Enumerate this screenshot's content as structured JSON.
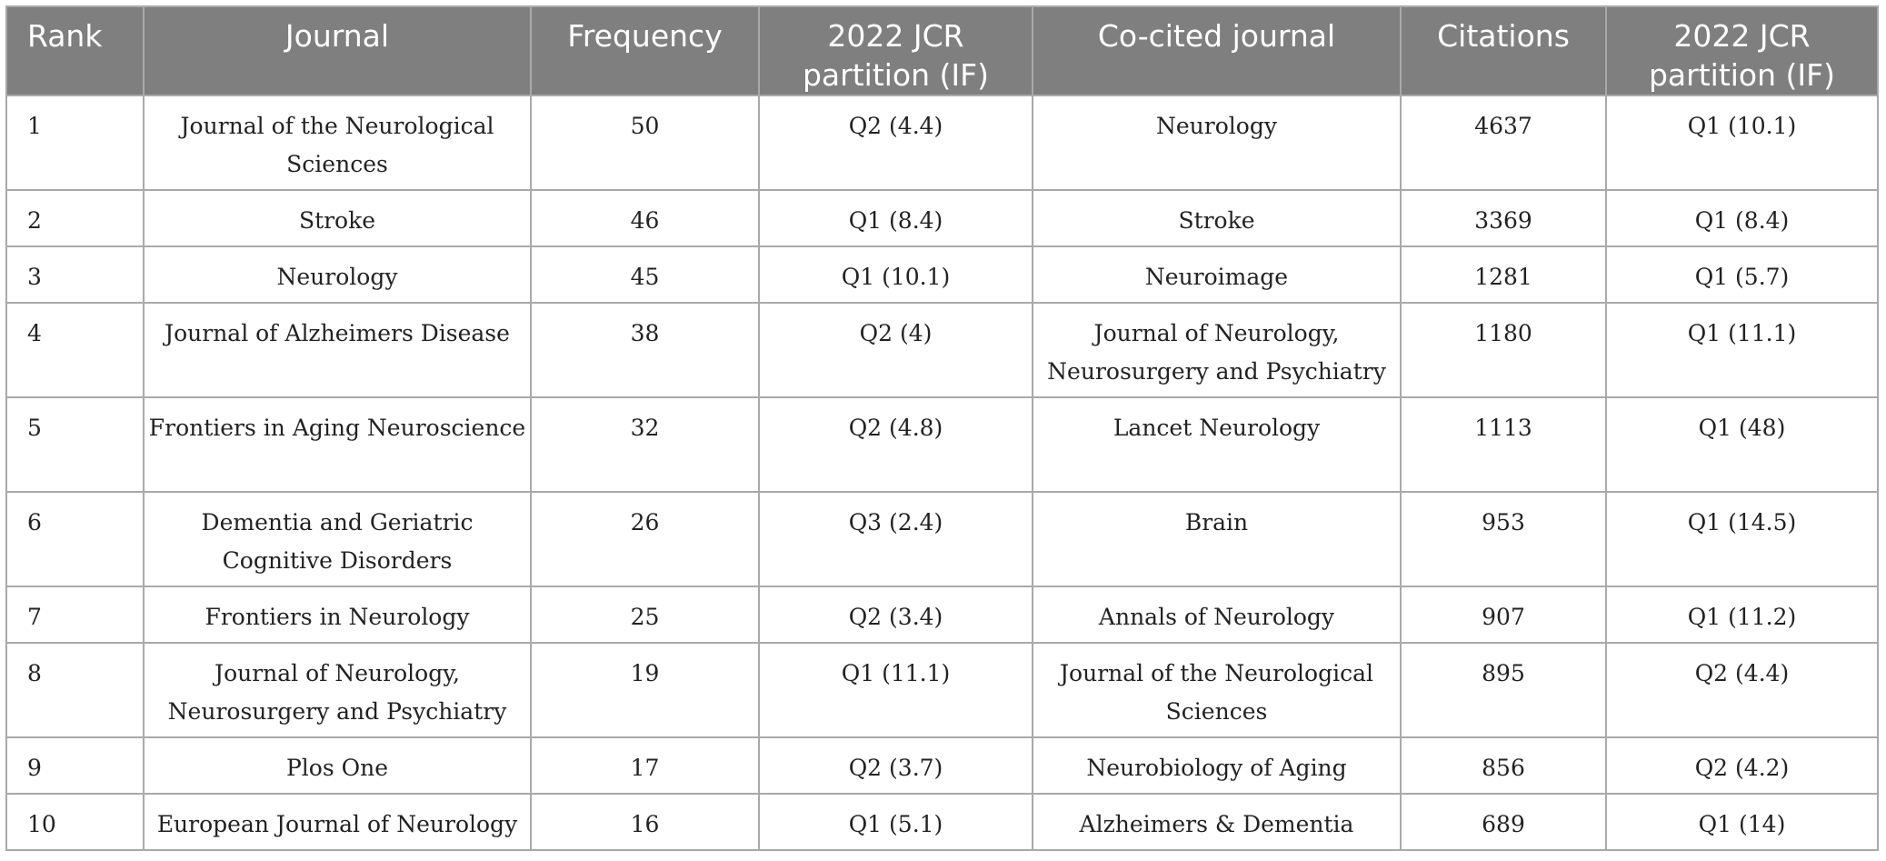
{
  "table": {
    "headers": {
      "rank": "Rank",
      "journal": "Journal",
      "frequency": "Frequency",
      "jcr1": "2022 JCR partition (IF)",
      "cocited": "Co-cited journal",
      "citations": "Citations",
      "jcr2": "2022 JCR partition (IF)"
    },
    "rows": [
      {
        "rank": "1",
        "journal": "Journal of the Neurological Sciences",
        "frequency": "50",
        "jcr1": "Q2 (4.4)",
        "cocited": "Neurology",
        "citations": "4637",
        "jcr2": "Q1 (10.1)"
      },
      {
        "rank": "2",
        "journal": "Stroke",
        "frequency": "46",
        "jcr1": "Q1 (8.4)",
        "cocited": "Stroke",
        "citations": "3369",
        "jcr2": "Q1 (8.4)"
      },
      {
        "rank": "3",
        "journal": "Neurology",
        "frequency": "45",
        "jcr1": "Q1 (10.1)",
        "cocited": "Neuroimage",
        "citations": "1281",
        "jcr2": "Q1 (5.7)"
      },
      {
        "rank": "4",
        "journal": "Journal of Alzheimers Disease",
        "frequency": "38",
        "jcr1": "Q2 (4)",
        "cocited": "Journal of Neurology, Neurosurgery and Psychiatry",
        "citations": "1180",
        "jcr2": "Q1 (11.1)"
      },
      {
        "rank": "5",
        "journal": "Frontiers in Aging Neuroscience",
        "frequency": "32",
        "jcr1": "Q2 (4.8)",
        "cocited": "Lancet Neurology",
        "citations": "1113",
        "jcr2": "Q1 (48)"
      },
      {
        "rank": "6",
        "journal": "Dementia and Geriatric Cognitive Disorders",
        "frequency": "26",
        "jcr1": "Q3 (2.4)",
        "cocited": "Brain",
        "citations": "953",
        "jcr2": "Q1 (14.5)"
      },
      {
        "rank": "7",
        "journal": "Frontiers in Neurology",
        "frequency": "25",
        "jcr1": "Q2 (3.4)",
        "cocited": "Annals of Neurology",
        "citations": "907",
        "jcr2": "Q1 (11.2)"
      },
      {
        "rank": "8",
        "journal": "Journal of Neurology, Neurosurgery and Psychiatry",
        "frequency": "19",
        "jcr1": "Q1 (11.1)",
        "cocited": "Journal of the Neurological Sciences",
        "citations": "895",
        "jcr2": "Q2 (4.4)"
      },
      {
        "rank": "9",
        "journal": "Plos One",
        "frequency": "17",
        "jcr1": "Q2 (3.7)",
        "cocited": "Neurobiology of Aging",
        "citations": "856",
        "jcr2": "Q2 (4.2)"
      },
      {
        "rank": "10",
        "journal": "European Journal of Neurology",
        "frequency": "16",
        "jcr1": "Q1 (5.1)",
        "cocited": "Alzheimers & Dementia",
        "citations": "689",
        "jcr2": "Q1 (14)"
      }
    ]
  }
}
